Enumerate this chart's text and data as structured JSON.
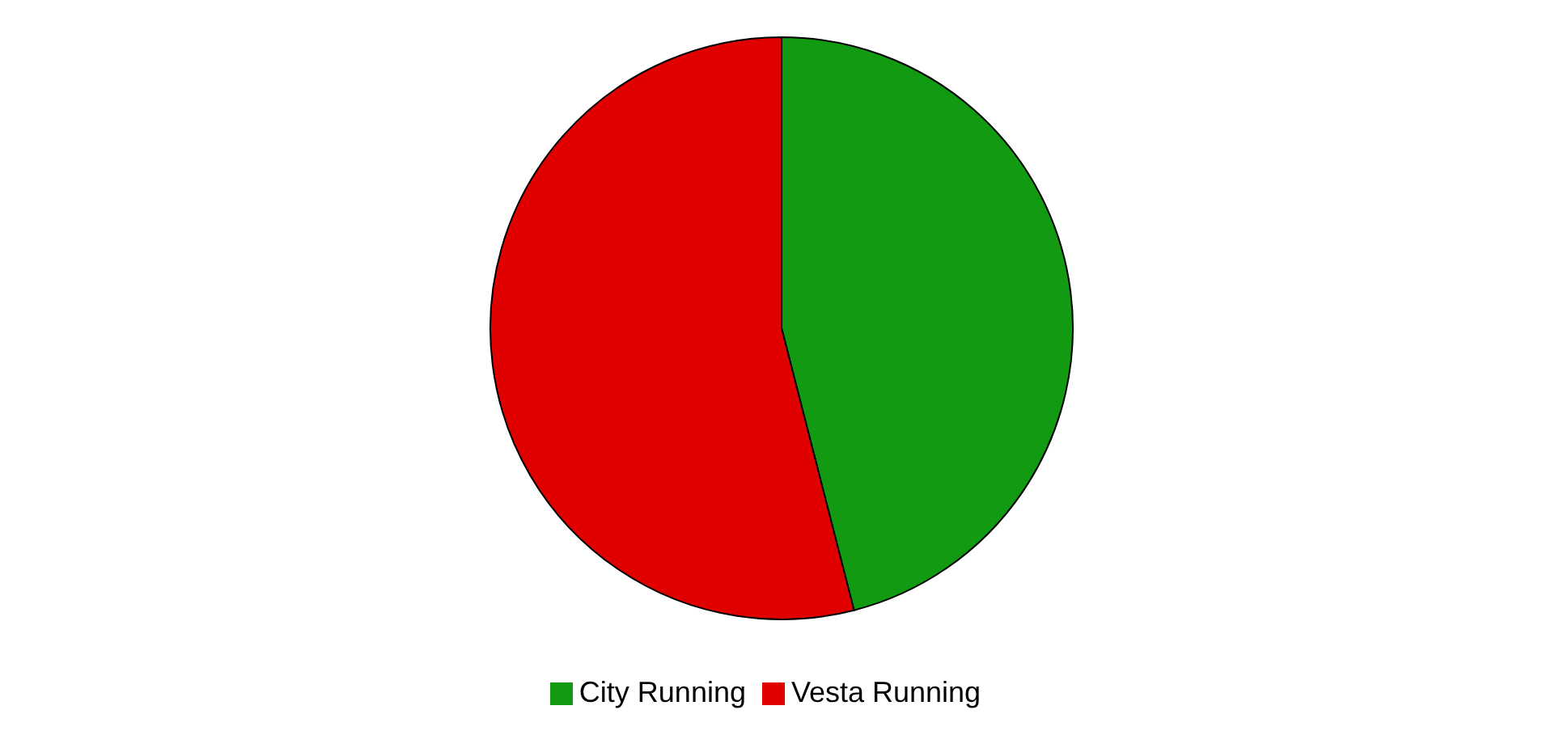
{
  "chart_data": {
    "type": "pie",
    "categories": [
      "City Running",
      "Vesta Running"
    ],
    "values": [
      46,
      54
    ],
    "colors": [
      "#129a12",
      "#e00000"
    ],
    "legend": "bottom"
  }
}
